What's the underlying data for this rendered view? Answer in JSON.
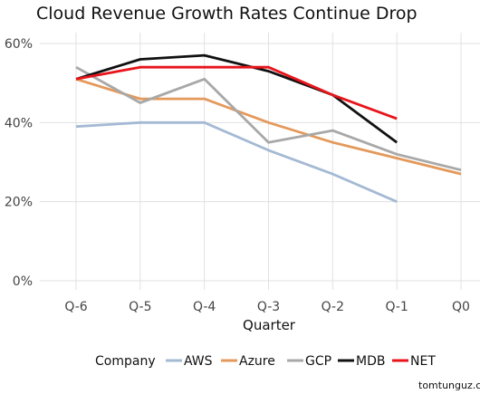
{
  "chart_data": {
    "type": "line",
    "title": "Cloud Revenue Growth Rates Continue Drop",
    "xlabel": "Quarter",
    "ylabel": "",
    "categories": [
      "Q-6",
      "Q-5",
      "Q-4",
      "Q-3",
      "Q-2",
      "Q-1",
      "Q0"
    ],
    "y_ticks": [
      "0%",
      "20%",
      "40%",
      "60%"
    ],
    "ylim": [
      0,
      0.62
    ],
    "grid": true,
    "legend": {
      "title": "Company",
      "position": "bottom"
    },
    "series": [
      {
        "name": "AWS",
        "color": "#a4b9d4",
        "values": [
          0.39,
          0.4,
          0.4,
          0.33,
          0.27,
          0.2,
          null
        ]
      },
      {
        "name": "Azure",
        "color": "#e4995b",
        "values": [
          0.51,
          0.46,
          0.46,
          0.4,
          0.35,
          0.31,
          0.27
        ]
      },
      {
        "name": "GCP",
        "color": "#a8a8a8",
        "values": [
          0.54,
          0.45,
          0.51,
          0.35,
          0.38,
          0.32,
          0.28
        ]
      },
      {
        "name": "MDB",
        "color": "#111111",
        "values": [
          0.51,
          0.56,
          0.57,
          0.53,
          0.47,
          0.35,
          null
        ]
      },
      {
        "name": "NET",
        "color": "#e8141b",
        "values": [
          0.51,
          0.54,
          0.54,
          0.54,
          0.47,
          0.41,
          null
        ]
      }
    ]
  },
  "credit": "tomtunguz.c"
}
